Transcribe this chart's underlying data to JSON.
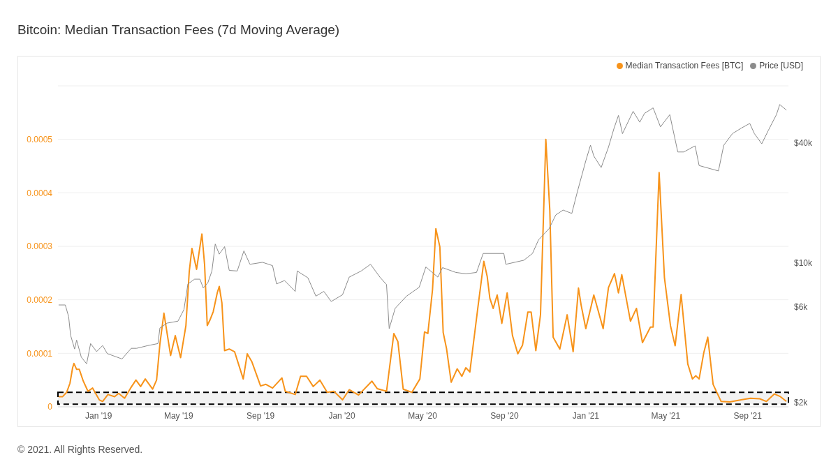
{
  "chart_data": {
    "type": "line",
    "title": "Bitcoin: Median Transaction Fees (7d Moving Average)",
    "annotations": [
      "© 2021. All Rights Reserved."
    ],
    "xlim": [
      "2018-11-01",
      "2021-11-01"
    ],
    "xticks": [
      {
        "value": "2019-01-01",
        "label": "Jan '19"
      },
      {
        "value": "2019-05-01",
        "label": "May '19"
      },
      {
        "value": "2019-09-01",
        "label": "Sep '19"
      },
      {
        "value": "2020-01-01",
        "label": "Jan '20"
      },
      {
        "value": "2020-05-01",
        "label": "May '20"
      },
      {
        "value": "2020-09-01",
        "label": "Sep '20"
      },
      {
        "value": "2021-01-01",
        "label": "Jan '21"
      },
      {
        "value": "2021-05-01",
        "label": "May '21"
      },
      {
        "value": "2021-09-01",
        "label": "Sep '21"
      }
    ],
    "ylim": [
      0,
      0.0006
    ],
    "yticks": [
      0,
      0.0001,
      0.0002,
      0.0003,
      0.0004,
      0.0005
    ],
    "y2lim": [
      1900,
      77000
    ],
    "y2ticks": [
      {
        "value": 2000,
        "label": "$2k"
      },
      {
        "value": 6000,
        "label": "$6k"
      },
      {
        "value": 10000,
        "label": "$10k"
      },
      {
        "value": 40000,
        "label": "$40k"
      }
    ],
    "log": "y2",
    "grid": "y",
    "legend": "top right",
    "bands": [
      {
        "axis": "y",
        "from": 5e-06,
        "to": 2.7e-05,
        "color": "#000000"
      }
    ],
    "series": [
      {
        "name": "Median Transaction Fees [BTC]",
        "color": "#f7931a",
        "x": [
          "2018-11-02",
          "2018-11-08",
          "2018-11-14",
          "2018-11-19",
          "2018-11-23",
          "2018-11-25",
          "2018-11-29",
          "2018-12-03",
          "2018-12-09",
          "2018-12-16",
          "2018-12-23",
          "2019-01-02",
          "2019-01-07",
          "2019-01-15",
          "2019-01-25",
          "2019-01-31",
          "2019-02-09",
          "2019-02-18",
          "2019-02-26",
          "2019-03-05",
          "2019-03-12",
          "2019-03-23",
          "2019-03-29",
          "2019-04-03",
          "2019-04-09",
          "2019-04-19",
          "2019-04-26",
          "2019-05-04",
          "2019-05-12",
          "2019-05-17",
          "2019-05-21",
          "2019-05-28",
          "2019-06-02",
          "2019-06-05",
          "2019-06-09",
          "2019-06-13",
          "2019-06-17",
          "2019-06-22",
          "2019-06-28",
          "2019-07-01",
          "2019-07-05",
          "2019-07-09",
          "2019-07-16",
          "2019-07-24",
          "2019-08-06",
          "2019-08-12",
          "2019-08-19",
          "2019-09-01",
          "2019-09-09",
          "2019-09-19",
          "2019-10-03",
          "2019-10-08",
          "2019-10-23",
          "2019-10-31",
          "2019-11-09",
          "2019-11-19",
          "2019-11-29",
          "2019-12-10",
          "2019-12-20",
          "2020-01-02",
          "2020-01-12",
          "2020-01-26",
          "2020-02-15",
          "2020-02-23",
          "2020-03-08",
          "2020-03-19",
          "2020-03-25",
          "2020-04-02",
          "2020-04-15",
          "2020-04-27",
          "2020-05-04",
          "2020-05-09",
          "2020-05-16",
          "2020-05-21",
          "2020-05-27",
          "2020-06-01",
          "2020-06-06",
          "2020-06-13",
          "2020-06-22",
          "2020-06-29",
          "2020-07-05",
          "2020-07-11",
          "2020-07-23",
          "2020-08-01",
          "2020-08-06",
          "2020-08-10",
          "2020-08-15",
          "2020-08-21",
          "2020-08-28",
          "2020-09-05",
          "2020-09-13",
          "2020-09-21",
          "2020-09-28",
          "2020-10-06",
          "2020-10-11",
          "2020-10-18",
          "2020-10-25",
          "2020-11-02",
          "2020-11-08",
          "2020-11-13",
          "2020-11-23",
          "2020-12-04",
          "2020-12-13",
          "2020-12-21",
          "2020-12-25",
          "2021-01-01",
          "2021-01-13",
          "2021-01-27",
          "2021-02-04",
          "2021-02-13",
          "2021-02-19",
          "2021-02-24",
          "2021-03-09",
          "2021-03-18",
          "2021-03-27",
          "2021-04-08",
          "2021-04-12",
          "2021-04-21",
          "2021-04-29",
          "2021-05-08",
          "2021-05-15",
          "2021-05-24",
          "2021-06-03",
          "2021-06-10",
          "2021-06-15",
          "2021-06-20",
          "2021-06-27",
          "2021-07-03",
          "2021-07-11",
          "2021-07-23",
          "2021-08-05",
          "2021-08-22",
          "2021-09-05",
          "2021-09-19",
          "2021-09-29",
          "2021-10-11",
          "2021-10-20",
          "2021-10-29"
        ],
        "values": [
          1.9e-05,
          1.9e-05,
          2.7e-05,
          4.4e-05,
          7.3e-05,
          8.1e-05,
          7e-05,
          7e-05,
          4.8e-05,
          2.9e-05,
          3.5e-05,
          1.3e-05,
          1e-05,
          2.3e-05,
          1.9e-05,
          2.5e-05,
          1.6e-05,
          3.5e-05,
          5e-05,
          3.8e-05,
          5.2e-05,
          3.3e-05,
          5e-05,
          0.000118,
          0.000175,
          9.6e-05,
          0.000133,
          9.2e-05,
          0.000152,
          0.000253,
          0.000296,
          0.000257,
          0.000299,
          0.000323,
          0.000266,
          0.000152,
          0.000162,
          0.000178,
          0.000213,
          0.000225,
          0.000194,
          0.000105,
          0.000108,
          0.000103,
          5.2e-05,
          9.9e-05,
          8.4e-05,
          3.9e-05,
          4.2e-05,
          3.5e-05,
          5.4e-05,
          2.9e-05,
          2.3e-05,
          5.7e-05,
          5.7e-05,
          3.8e-05,
          5e-05,
          2.7e-05,
          2.9e-05,
          1.3e-05,
          3.2e-05,
          2.2e-05,
          4.8e-05,
          3.4e-05,
          2.9e-05,
          0.000137,
          0.000122,
          3.3e-05,
          2.7e-05,
          5.2e-05,
          0.00014,
          0.000137,
          0.000219,
          0.000333,
          0.000299,
          0.000139,
          0.000109,
          4.6e-05,
          7.1e-05,
          5.7e-05,
          7.3e-05,
          6.5e-05,
          0.000185,
          0.000272,
          0.000244,
          0.000203,
          0.000184,
          0.000209,
          0.000156,
          0.000213,
          0.000133,
          9.9e-05,
          0.000115,
          0.000177,
          0.000177,
          0.000105,
          0.000172,
          0.0005,
          0.000367,
          0.00013,
          0.000108,
          0.000172,
          0.000103,
          0.000222,
          0.00019,
          0.000146,
          0.000209,
          0.000146,
          0.000223,
          0.000249,
          0.000213,
          0.000247,
          0.00016,
          0.000184,
          0.00012,
          0.000149,
          0.000149,
          0.000438,
          0.000241,
          0.000152,
          0.000114,
          0.00021,
          8e-05,
          5.2e-05,
          5.8e-05,
          5.2e-05,
          0.000101,
          0.00013,
          4.2e-05,
          1e-05,
          9e-06,
          1.3e-05,
          1.6e-05,
          1.5e-05,
          1e-05,
          2.4e-05,
          1.9e-05,
          1e-05
        ]
      },
      {
        "name": "Price [USD]",
        "color": "#8c8c8c",
        "axis": "y2",
        "x": [
          "2018-11-02",
          "2018-11-12",
          "2018-11-17",
          "2018-11-20",
          "2018-11-26",
          "2018-11-29",
          "2018-12-06",
          "2018-12-14",
          "2018-12-20",
          "2018-12-29",
          "2019-01-07",
          "2019-01-14",
          "2019-02-05",
          "2019-02-19",
          "2019-02-27",
          "2019-03-16",
          "2019-03-31",
          "2019-04-03",
          "2019-04-14",
          "2019-04-30",
          "2019-05-09",
          "2019-05-15",
          "2019-05-25",
          "2019-06-02",
          "2019-06-07",
          "2019-06-14",
          "2019-06-20",
          "2019-06-25",
          "2019-07-01",
          "2019-07-09",
          "2019-07-16",
          "2019-07-28",
          "2019-08-07",
          "2019-08-16",
          "2019-09-04",
          "2019-09-19",
          "2019-09-25",
          "2019-10-07",
          "2019-10-10",
          "2019-10-23",
          "2019-10-26",
          "2019-11-11",
          "2019-11-23",
          "2019-12-05",
          "2019-12-16",
          "2020-01-02",
          "2020-01-12",
          "2020-01-30",
          "2020-02-13",
          "2020-02-27",
          "2020-03-08",
          "2020-03-12",
          "2020-03-21",
          "2020-04-07",
          "2020-04-26",
          "2020-05-06",
          "2020-05-24",
          "2020-05-31",
          "2020-06-20",
          "2020-07-05",
          "2020-07-21",
          "2020-07-31",
          "2020-08-31",
          "2020-09-03",
          "2020-09-30",
          "2020-10-13",
          "2020-10-22",
          "2020-11-07",
          "2020-11-17",
          "2020-11-28",
          "2020-12-11",
          "2020-12-19",
          "2021-01-01",
          "2021-01-08",
          "2021-01-13",
          "2021-01-24",
          "2021-02-04",
          "2021-02-12",
          "2021-02-19",
          "2021-02-25",
          "2021-03-13",
          "2021-03-23",
          "2021-03-30",
          "2021-04-12",
          "2021-04-23",
          "2021-05-07",
          "2021-05-19",
          "2021-05-28",
          "2021-06-14",
          "2021-06-20",
          "2021-07-19",
          "2021-07-27",
          "2021-08-09",
          "2021-08-22",
          "2021-09-04",
          "2021-09-11",
          "2021-09-22",
          "2021-10-02",
          "2021-10-14",
          "2021-10-19",
          "2021-10-29"
        ],
        "values": [
          6150,
          6150,
          5380,
          4330,
          3700,
          4100,
          3370,
          3120,
          3940,
          3590,
          3850,
          3510,
          3300,
          3730,
          3730,
          3850,
          3940,
          4720,
          4990,
          5100,
          5830,
          7840,
          8280,
          8280,
          7480,
          7960,
          9100,
          12420,
          11050,
          12050,
          9160,
          9100,
          11480,
          9830,
          10060,
          9680,
          7840,
          8150,
          7960,
          7190,
          9100,
          8410,
          6810,
          7190,
          6400,
          6920,
          8480,
          9100,
          9830,
          8480,
          7780,
          4680,
          5920,
          6810,
          7540,
          9530,
          8480,
          9460,
          8950,
          8810,
          8950,
          11140,
          11140,
          9830,
          10300,
          11140,
          13020,
          14860,
          17380,
          18370,
          17670,
          22480,
          32450,
          38840,
          34280,
          30000,
          37950,
          46790,
          54730,
          44350,
          57380,
          50610,
          56000,
          59700,
          47970,
          55200,
          35910,
          35910,
          38540,
          30700,
          28850,
          38840,
          44350,
          47220,
          49890,
          44350,
          39450,
          46150,
          55200,
          62050,
          58220
        ]
      }
    ]
  }
}
